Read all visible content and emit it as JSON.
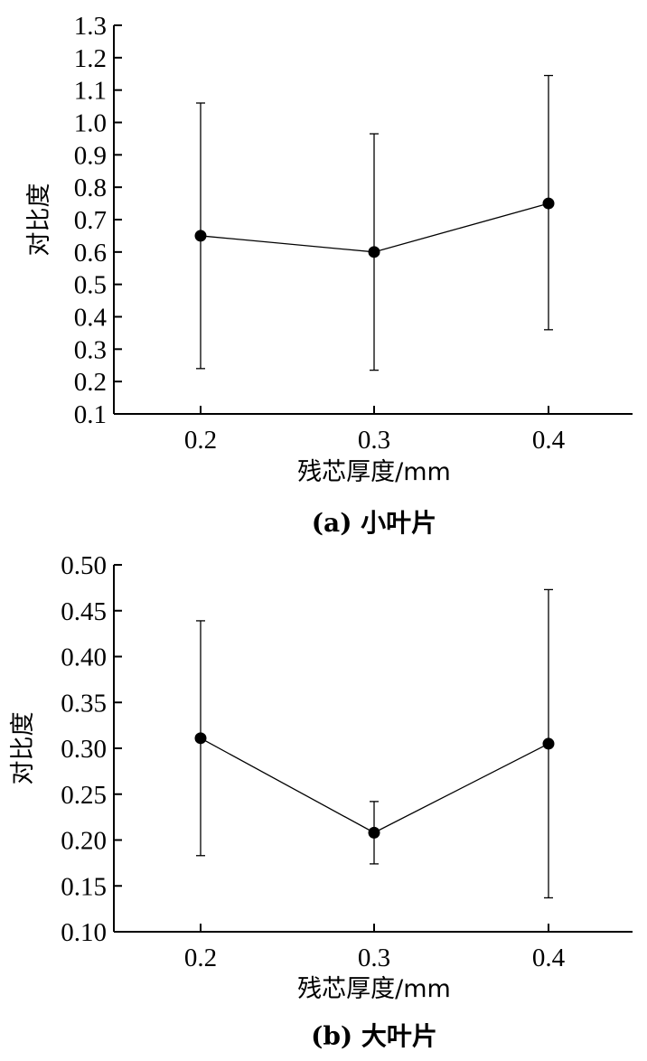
{
  "chart_data": [
    {
      "type": "line",
      "caption": "(a) 小叶片",
      "xlabel": "残芯厚度/mm",
      "ylabel": "对比度",
      "categories": [
        "0.2",
        "0.3",
        "0.4"
      ],
      "ylim": [
        0.1,
        1.3
      ],
      "yticks": [
        "0.1",
        "0.2",
        "0.3",
        "0.4",
        "0.5",
        "0.6",
        "0.7",
        "0.8",
        "0.9",
        "1.0",
        "1.1",
        "1.2",
        "1.3"
      ],
      "series": [
        {
          "values": [
            0.65,
            0.6,
            0.75
          ],
          "err_low": [
            0.24,
            0.235,
            0.36
          ],
          "err_high": [
            1.06,
            0.965,
            1.145
          ]
        }
      ],
      "grid": false,
      "color": "#000000"
    },
    {
      "type": "line",
      "caption": "(b) 大叶片",
      "xlabel": "残芯厚度/mm",
      "ylabel": "对比度",
      "categories": [
        "0.2",
        "0.3",
        "0.4"
      ],
      "ylim": [
        0.1,
        0.5
      ],
      "yticks": [
        "0.10",
        "0.15",
        "0.20",
        "0.25",
        "0.30",
        "0.35",
        "0.40",
        "0.45",
        "0.50"
      ],
      "series": [
        {
          "values": [
            0.311,
            0.208,
            0.305
          ],
          "err_low": [
            0.183,
            0.174,
            0.137
          ],
          "err_high": [
            0.439,
            0.242,
            0.473
          ]
        }
      ],
      "grid": false,
      "color": "#000000"
    }
  ]
}
